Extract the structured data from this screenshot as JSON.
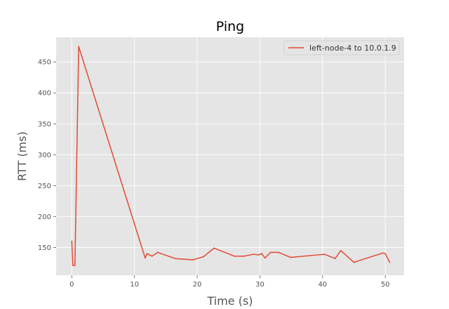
{
  "chart_data": {
    "type": "line",
    "title": "Ping",
    "xlabel": "Time (s)",
    "ylabel": "RTT (ms)",
    "xlim": [
      -2.5,
      53
    ],
    "ylim": [
      105,
      490
    ],
    "xticks": [
      0,
      10,
      20,
      30,
      40,
      50
    ],
    "yticks": [
      150,
      200,
      250,
      300,
      350,
      400,
      450
    ],
    "grid": true,
    "legend_position": "top-right",
    "style": {
      "background": "#e5e5e5",
      "grid_color": "#ffffff",
      "line_color": "#e24a33"
    },
    "series": [
      {
        "name": "left-node-4 to 10.0.1.9",
        "x": [
          0.0,
          0.15,
          0.5,
          1.1,
          11.7,
          12.0,
          12.8,
          13.7,
          16.5,
          19.3,
          21.0,
          22.7,
          25.9,
          27.5,
          29.0,
          29.8,
          30.3,
          30.8,
          31.7,
          33.0,
          34.9,
          40.3,
          42.0,
          42.9,
          45.0,
          49.6,
          50.0,
          50.7
        ],
        "y": [
          160,
          121,
          121,
          475,
          133,
          140,
          136,
          142,
          132,
          130,
          135,
          149,
          136,
          136,
          139,
          138,
          140,
          133,
          142,
          142,
          134,
          139,
          132,
          145,
          126,
          141,
          140,
          126
        ]
      }
    ]
  }
}
